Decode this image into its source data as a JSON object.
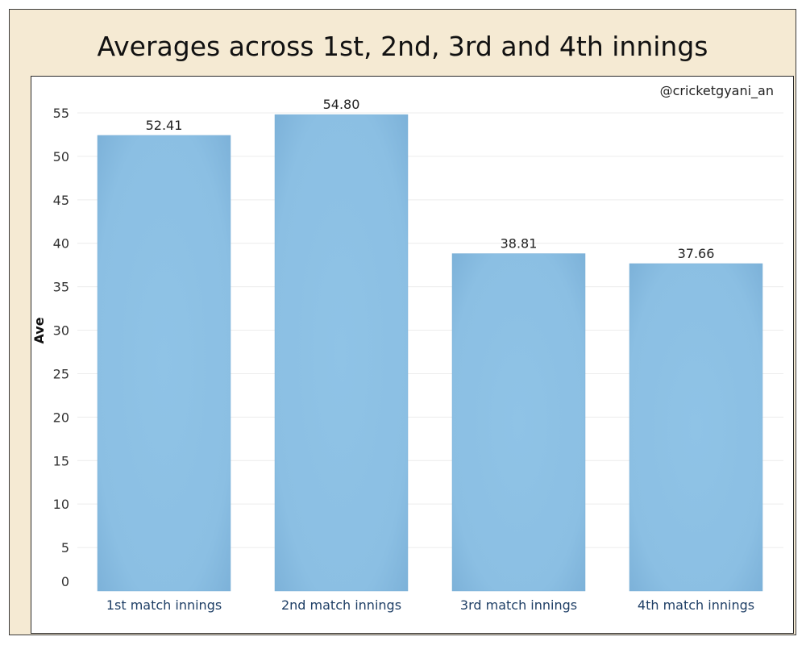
{
  "chart_data": {
    "type": "bar",
    "title": "Averages across 1st, 2nd, 3rd and 4th innings",
    "watermark": "@cricketgyani_an",
    "ylabel": "Ave",
    "xlabel": "",
    "categories": [
      "1st match innings",
      "2nd match innings",
      "3rd match innings",
      "4th match innings"
    ],
    "values": [
      52.41,
      54.8,
      38.81,
      37.66
    ],
    "data_labels": [
      "52.41",
      "54.80",
      "38.81",
      "37.66"
    ],
    "ylim": [
      0,
      55
    ],
    "yticks": [
      "0",
      "5",
      "10",
      "15",
      "20",
      "25",
      "30",
      "35",
      "40",
      "45",
      "50",
      "55"
    ],
    "grid": true,
    "colors": {
      "bar": "#8bbfe3",
      "bar_edge": "#7aafd6",
      "frame_bg": "#f5ead3"
    }
  }
}
